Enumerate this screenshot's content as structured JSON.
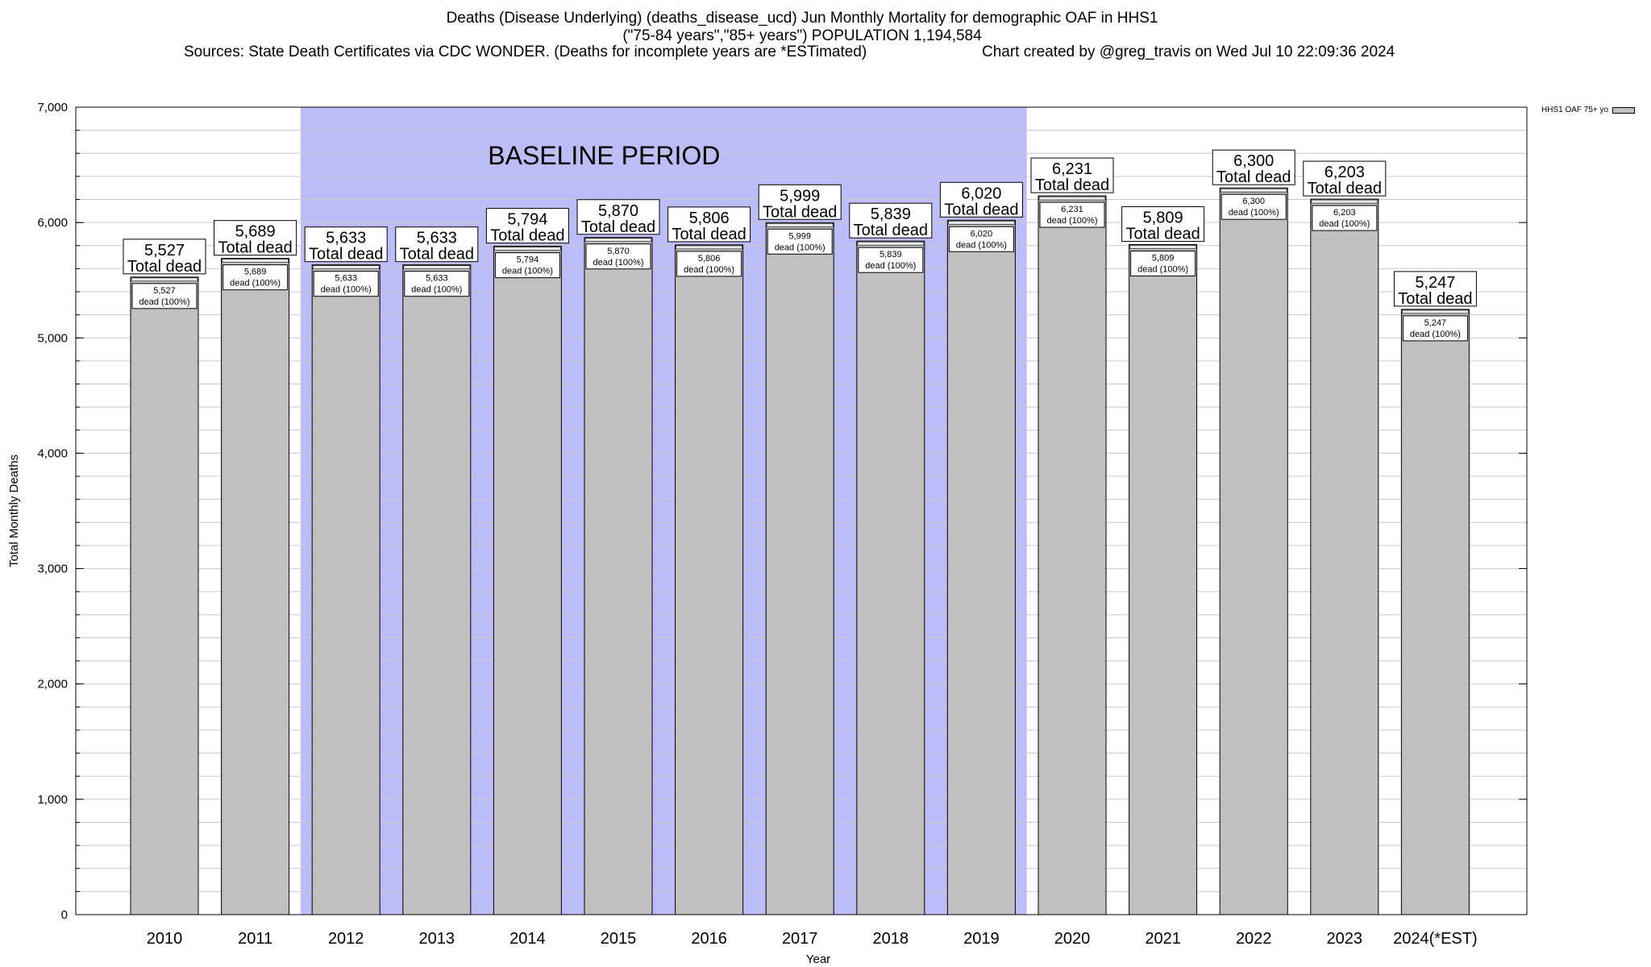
{
  "title": {
    "line1": "Deaths (Disease Underlying) (deaths_disease_ucd) Jun Monthly Mortality for demographic OAF in HHS1",
    "line2": "(\"75-84 years\",\"85+ years\") POPULATION 1,194,584",
    "sources": "Sources: State Death Certificates via CDC WONDER. (Deaths for incomplete years are *ESTimated)",
    "credit": "Chart created by @greg_travis on Wed Jul 10 22:09:36 2024"
  },
  "legend": {
    "label": "HHS1 OAF 75+ yo",
    "color": "#c0c0c0"
  },
  "chart_data": {
    "type": "bar",
    "title": "Deaths (Disease Underlying) (deaths_disease_ucd) Jun Monthly Mortality for demographic OAF in HHS1",
    "xlabel": "Year",
    "ylabel": "Total Monthly Deaths",
    "ylim": [
      0,
      7000
    ],
    "yticks": [
      0,
      1000,
      2000,
      3000,
      4000,
      5000,
      6000,
      7000
    ],
    "ytick_labels": [
      "0",
      "1,000",
      "2,000",
      "3,000",
      "4,000",
      "5,000",
      "6,000",
      "7,000"
    ],
    "grid": true,
    "legend_position": "top-right",
    "categories": [
      "2010",
      "2011",
      "2012",
      "2013",
      "2014",
      "2015",
      "2016",
      "2017",
      "2018",
      "2019",
      "2020",
      "2021",
      "2022",
      "2023",
      "2024(*EST)"
    ],
    "series": [
      {
        "name": "HHS1 OAF 75+ yo",
        "values": [
          5527,
          5689,
          5633,
          5633,
          5794,
          5870,
          5806,
          5999,
          5839,
          6020,
          6231,
          5809,
          6300,
          6203,
          5247
        ]
      }
    ],
    "value_labels": [
      "5,527",
      "5,689",
      "5,633",
      "5,633",
      "5,794",
      "5,870",
      "5,806",
      "5,999",
      "5,839",
      "6,020",
      "6,231",
      "5,809",
      "6,300",
      "6,203",
      "5,247"
    ],
    "total_label": "Total dead",
    "inner_label_suffix": "dead (100%)",
    "baseline": {
      "label": "BASELINE PERIOD",
      "start": "2012",
      "end": "2019",
      "color": "#bcbcf8"
    },
    "colors": {
      "bar": "#c0c0c0",
      "bar_stroke": "#000000",
      "grid": "#c8c8c8"
    }
  }
}
